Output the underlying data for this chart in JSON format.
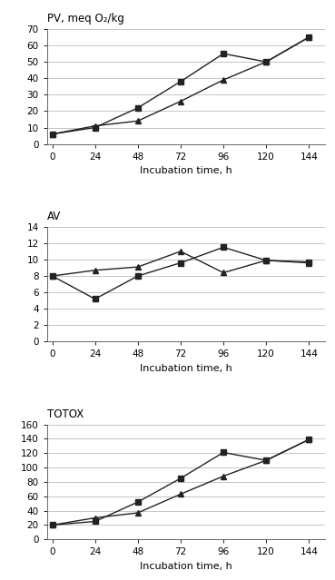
{
  "x": [
    0,
    24,
    48,
    72,
    96,
    120,
    144
  ],
  "pv": {
    "series1": [
      6,
      10,
      22,
      38,
      55,
      50,
      65
    ],
    "series2": [
      6,
      11,
      14,
      26,
      39,
      50,
      65
    ],
    "ylabel": "PV, meq O₂/kg",
    "ylim": [
      0,
      70
    ],
    "yticks": [
      0,
      10,
      20,
      30,
      40,
      50,
      60,
      70
    ],
    "xlabel": "Incubation time, h"
  },
  "av": {
    "series1": [
      8,
      5.2,
      8.0,
      9.6,
      11.5,
      9.9,
      9.7
    ],
    "series2": [
      8,
      8.7,
      9.1,
      11.0,
      8.4,
      9.9,
      9.6
    ],
    "ylabel": "AV",
    "ylim": [
      0,
      14
    ],
    "yticks": [
      0,
      2,
      4,
      6,
      8,
      10,
      12,
      14
    ],
    "xlabel": "Incubation time, h"
  },
  "totox": {
    "series1": [
      20,
      25,
      52,
      85,
      121,
      110,
      139
    ],
    "series2": [
      20,
      30,
      37,
      63,
      88,
      110,
      139
    ],
    "ylabel": "TOTOX",
    "ylim": [
      0,
      160
    ],
    "yticks": [
      0,
      20,
      40,
      60,
      80,
      100,
      120,
      140,
      160
    ],
    "xlabel": "Incubation time, h"
  },
  "line_color": "#222222",
  "marker1": "s",
  "marker2": "^",
  "markersize": 5,
  "linewidth": 1.0,
  "bg_color": "#ffffff",
  "grid_color": "#bbbbbb",
  "label_fontsize": 8.5,
  "tick_fontsize": 7.5,
  "xlabel_fontsize": 8.0
}
